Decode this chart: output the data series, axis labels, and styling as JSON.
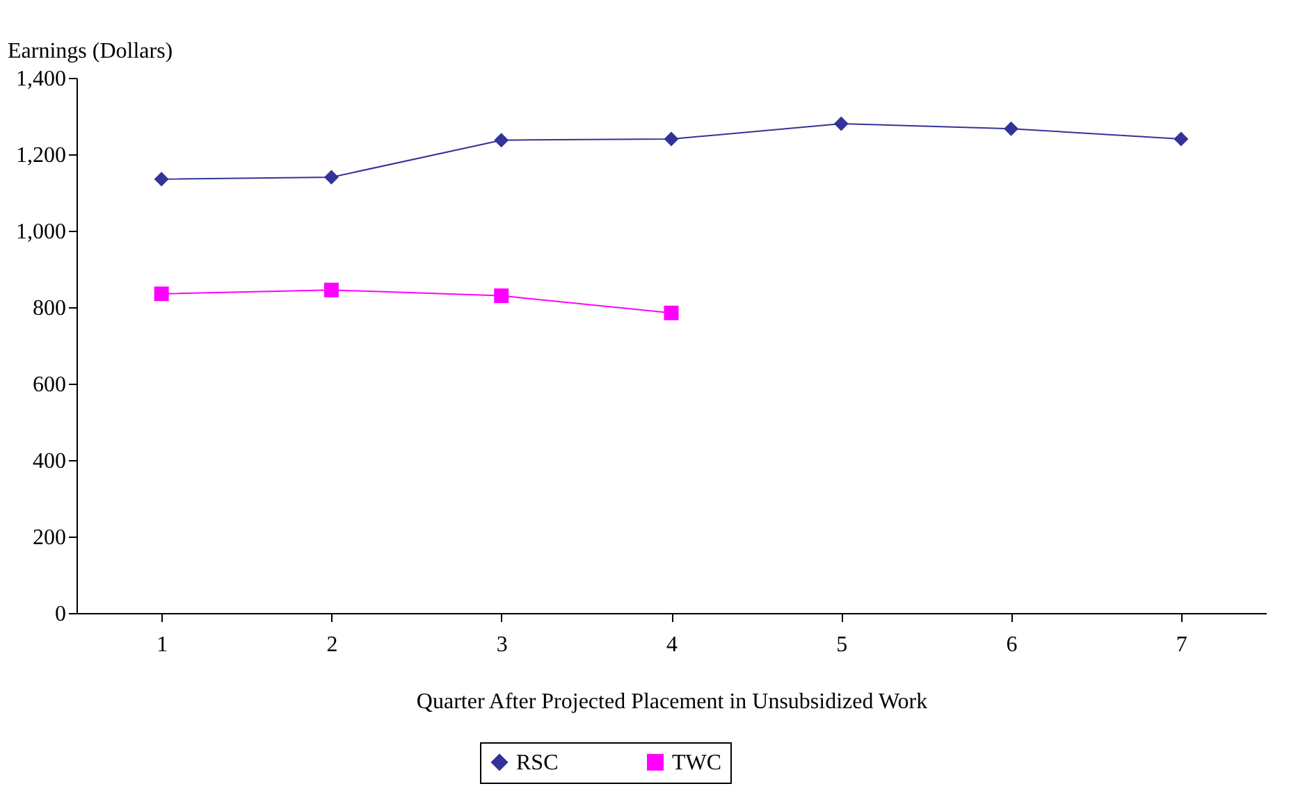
{
  "chart_data": {
    "type": "line",
    "xlabel": "Quarter After Projected Placement in Unsubsidized Work",
    "ylabel": "Earnings (Dollars)",
    "categories": [
      "1",
      "2",
      "3",
      "4",
      "5",
      "6",
      "7"
    ],
    "series": [
      {
        "name": "RSC",
        "color": "#333399",
        "marker": "diamond",
        "values": [
          1135,
          1140,
          1237,
          1240,
          1280,
          1267,
          1240
        ]
      },
      {
        "name": "TWC",
        "color": "#ff00ff",
        "marker": "square",
        "values": [
          835,
          845,
          830,
          785,
          null,
          null,
          null
        ]
      }
    ],
    "ylim": [
      0,
      1400
    ],
    "yticks": [
      0,
      200,
      400,
      600,
      800,
      {
        "value": 1000,
        "label": "1,000"
      },
      {
        "value": 1200,
        "label": "1,200"
      },
      {
        "value": 1400,
        "label": "1,400"
      }
    ],
    "grid": false,
    "legend": "bottom"
  }
}
